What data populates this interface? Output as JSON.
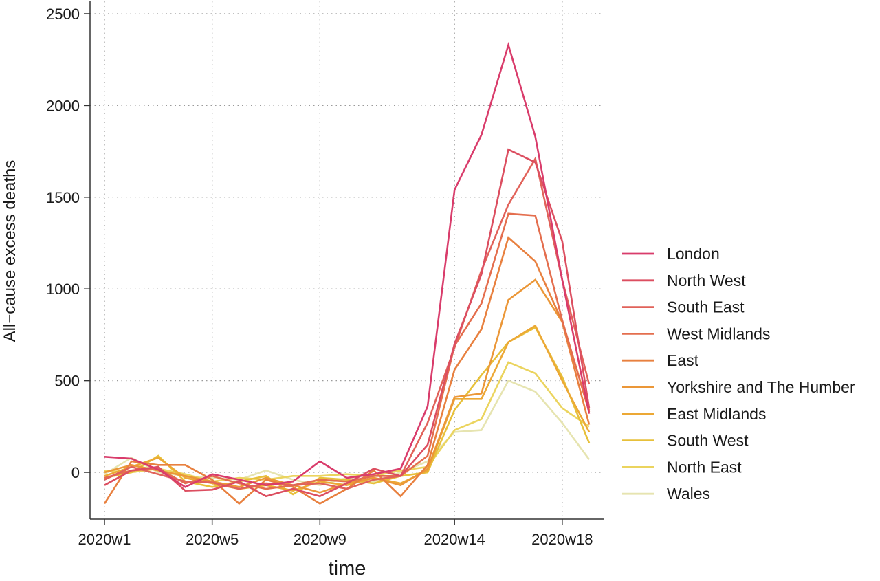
{
  "chart_data": {
    "type": "line",
    "title": "",
    "xlabel": "time",
    "ylabel": "All−cause excess deaths",
    "x": [
      "2020w1",
      "2020w2",
      "2020w3",
      "2020w4",
      "2020w5",
      "2020w6",
      "2020w7",
      "2020w8",
      "2020w9",
      "2020w10",
      "2020w11",
      "2020w12",
      "2020w13",
      "2020w14",
      "2020w15",
      "2020w16",
      "2020w17",
      "2020w18",
      "2020w19"
    ],
    "x_tick_labels": [
      "2020w1",
      "2020w5",
      "2020w9",
      "2020w14",
      "2020w18"
    ],
    "y_ticks": [
      0,
      500,
      1000,
      1500,
      2000,
      2500
    ],
    "y_tick_labels": [
      "0",
      "500",
      "1000",
      "1500",
      "2000",
      "2500"
    ],
    "ylim": [
      -250,
      2550
    ],
    "grid": true,
    "legend_position": "right",
    "series": [
      {
        "name": "London",
        "color": "#d93c6b",
        "values": [
          85,
          75,
          15,
          -80,
          -10,
          -40,
          -70,
          -50,
          60,
          -30,
          -10,
          20,
          360,
          1540,
          1840,
          2330,
          1830,
          1050,
          320
        ]
      },
      {
        "name": "North West",
        "color": "#dc4e60",
        "values": [
          -70,
          10,
          30,
          -100,
          -95,
          -50,
          -130,
          -90,
          -130,
          -60,
          20,
          -20,
          150,
          700,
          1080,
          1760,
          1690,
          1260,
          350
        ]
      },
      {
        "name": "South East",
        "color": "#e1625a",
        "values": [
          -40,
          30,
          -10,
          -50,
          -55,
          -90,
          -60,
          -70,
          -60,
          -90,
          -40,
          -20,
          270,
          680,
          1100,
          1460,
          1710,
          1050,
          480
        ]
      },
      {
        "name": "West Midlands",
        "color": "#e46e4e",
        "values": [
          -30,
          10,
          20,
          -60,
          -20,
          -60,
          -90,
          -70,
          -40,
          -50,
          -20,
          -20,
          90,
          690,
          920,
          1410,
          1400,
          830,
          330
        ]
      },
      {
        "name": "East",
        "color": "#e8803f",
        "values": [
          -170,
          60,
          40,
          40,
          -40,
          -170,
          -40,
          -80,
          -170,
          -90,
          10,
          -130,
          40,
          560,
          780,
          1280,
          1150,
          820,
          260
        ]
      },
      {
        "name": "Yorkshire and The Humber",
        "color": "#eb9738",
        "values": [
          0,
          40,
          10,
          -20,
          -50,
          -80,
          -30,
          -70,
          -110,
          -60,
          -30,
          -70,
          20,
          410,
          430,
          940,
          1050,
          820,
          340
        ]
      },
      {
        "name": "East Midlands",
        "color": "#eca835",
        "values": [
          -20,
          30,
          80,
          -30,
          -60,
          -90,
          -70,
          -100,
          -50,
          -70,
          -30,
          -60,
          10,
          400,
          400,
          710,
          800,
          500,
          220
        ]
      },
      {
        "name": "South West",
        "color": "#e7c03a",
        "values": [
          -30,
          0,
          90,
          -50,
          -80,
          -50,
          -20,
          -120,
          -30,
          -40,
          -60,
          -20,
          0,
          340,
          530,
          710,
          790,
          520,
          160
        ]
      },
      {
        "name": "North East",
        "color": "#ebd45e",
        "values": [
          10,
          0,
          20,
          -10,
          -50,
          -30,
          -40,
          -20,
          -20,
          -10,
          -20,
          10,
          30,
          230,
          290,
          600,
          540,
          350,
          250
        ]
      },
      {
        "name": "Wales",
        "color": "#e6e4b0",
        "values": [
          -10,
          80,
          0,
          -20,
          -30,
          -40,
          10,
          -40,
          -70,
          -30,
          -50,
          0,
          60,
          220,
          230,
          500,
          440,
          270,
          70
        ]
      }
    ]
  }
}
